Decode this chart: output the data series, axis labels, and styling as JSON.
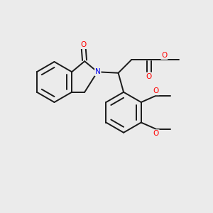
{
  "bg_color": "#ebebeb",
  "bond_color": "#1a1a1a",
  "atom_colors": {
    "O": "#ff0000",
    "N": "#0000ee",
    "C": "#1a1a1a"
  },
  "figsize": [
    3.0,
    3.0
  ],
  "dpi": 100
}
